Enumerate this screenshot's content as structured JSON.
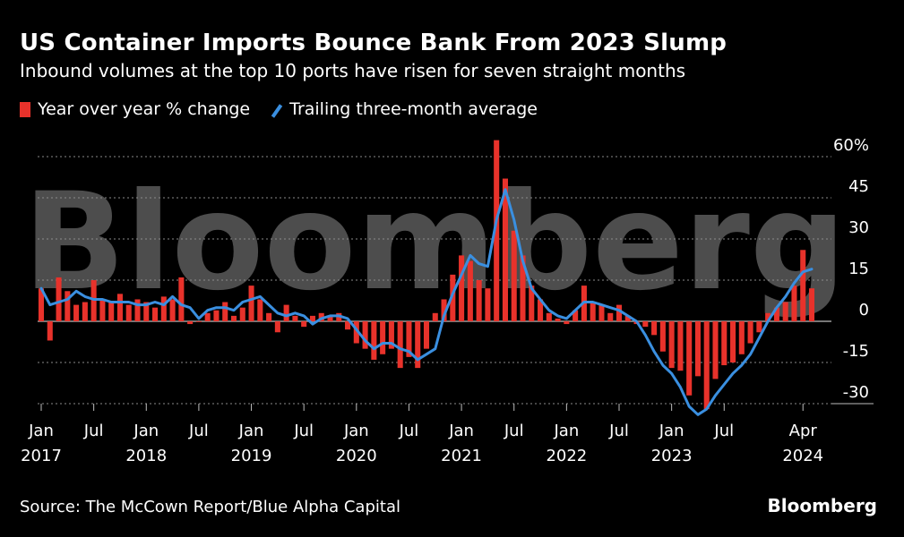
{
  "header": {
    "title": "US Container Imports Bounce Bank From 2023 Slump",
    "subtitle": "Inbound volumes at the top 10 ports have risen for seven straight months"
  },
  "legend": {
    "bar_label": "Year over year % change",
    "line_label": "Trailing three-month average"
  },
  "footer": {
    "source": "Source: The McCown Report/Blue Alpha Capital",
    "brand": "Bloomberg"
  },
  "watermark": "Bloomberg",
  "colors": {
    "bar": "#e8322b",
    "line": "#3a8fe0",
    "grid": "#8a8a8a",
    "text": "#ffffff",
    "background": "#000000"
  },
  "chart_data": {
    "type": "bar",
    "title": "US Container Imports Bounce Bank From 2023 Slump",
    "ylabel": "",
    "ylim": [
      -32,
      64
    ],
    "yticks": [
      60,
      45,
      30,
      15,
      0,
      -15,
      -30
    ],
    "ytick_labels": [
      "60%",
      "45",
      "30",
      "15",
      "0",
      "-15",
      "-30"
    ],
    "x_tick_labels": [
      {
        "index": 0,
        "month": "Jan",
        "year": "2017"
      },
      {
        "index": 6,
        "month": "Jul",
        "year": ""
      },
      {
        "index": 12,
        "month": "Jan",
        "year": "2018"
      },
      {
        "index": 18,
        "month": "Jul",
        "year": ""
      },
      {
        "index": 24,
        "month": "Jan",
        "year": "2019"
      },
      {
        "index": 30,
        "month": "Jul",
        "year": ""
      },
      {
        "index": 36,
        "month": "Jan",
        "year": "2020"
      },
      {
        "index": 42,
        "month": "Jul",
        "year": ""
      },
      {
        "index": 48,
        "month": "Jan",
        "year": "2021"
      },
      {
        "index": 54,
        "month": "Jul",
        "year": ""
      },
      {
        "index": 60,
        "month": "Jan",
        "year": "2022"
      },
      {
        "index": 66,
        "month": "Jul",
        "year": ""
      },
      {
        "index": 72,
        "month": "Jan",
        "year": "2023"
      },
      {
        "index": 78,
        "month": "Jul",
        "year": ""
      },
      {
        "index": 87,
        "month": "Apr",
        "year": "2024"
      }
    ],
    "series": [
      {
        "name": "Year over year % change",
        "type": "bar",
        "values": [
          12,
          -7,
          16,
          11,
          6,
          7,
          15,
          8,
          7,
          10,
          6,
          8,
          7,
          5,
          9,
          8,
          16,
          -1,
          0,
          3,
          4,
          7,
          2,
          5,
          13,
          8,
          3,
          -4,
          6,
          2,
          -2,
          2,
          3,
          2,
          3,
          -3,
          -8,
          -10,
          -14,
          -12,
          -10,
          -17,
          -13,
          -17,
          -10,
          3,
          8,
          17,
          24,
          22,
          15,
          12,
          66,
          52,
          33,
          24,
          13,
          8,
          3,
          1,
          -1,
          4,
          13,
          7,
          6,
          3,
          6,
          2,
          -1,
          -2,
          -5,
          -11,
          -17,
          -18,
          -27,
          -20,
          -32,
          -21,
          -16,
          -15,
          -12,
          -8,
          -4,
          3,
          5,
          7,
          13,
          26,
          12
        ]
      },
      {
        "name": "Trailing three-month average",
        "type": "line",
        "values": [
          12,
          6,
          7,
          8,
          11,
          9,
          8,
          8,
          7,
          7,
          7,
          6,
          6,
          7,
          6,
          9,
          6,
          5,
          1,
          4,
          5,
          5,
          4,
          7,
          8,
          9,
          6,
          3,
          2,
          3,
          2,
          -1,
          1,
          2,
          2,
          1,
          -3,
          -7,
          -10,
          -8,
          -8,
          -10,
          -11,
          -14,
          -12,
          -10,
          2,
          10,
          17,
          24,
          21,
          20,
          37,
          48,
          37,
          22,
          12,
          8,
          4,
          2,
          1,
          4,
          7,
          7,
          6,
          5,
          4,
          2,
          0,
          -5,
          -11,
          -16,
          -19,
          -24,
          -31,
          -34,
          -32,
          -27,
          -23,
          -19,
          -16,
          -12,
          -6,
          0,
          5,
          9,
          14,
          18,
          19
        ]
      }
    ]
  }
}
